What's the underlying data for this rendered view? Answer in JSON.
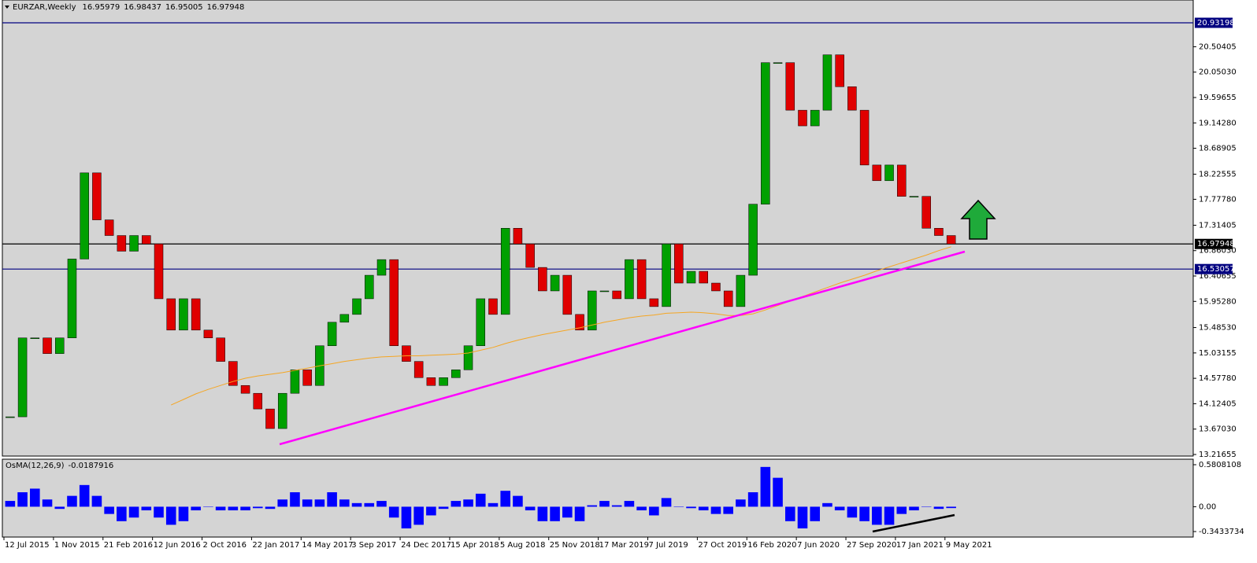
{
  "chart_data": {
    "type": "candlestick",
    "title": "EURZAR,Weekly",
    "quote": [
      16.95979,
      16.98437,
      16.95005,
      16.97948
    ],
    "x": [
      2,
      6,
      10,
      14,
      18,
      22,
      26,
      30,
      34,
      38,
      42,
      46,
      50,
      54,
      58,
      62,
      66,
      70,
      74,
      78,
      82,
      86,
      90,
      94,
      98,
      102,
      106,
      110,
      114,
      118,
      122,
      126,
      130,
      134,
      138,
      142,
      146,
      150,
      154,
      158,
      162,
      166,
      170,
      174,
      178,
      182,
      186,
      190,
      194,
      198,
      202,
      206,
      210,
      214,
      218,
      222,
      226,
      230,
      234,
      238,
      242,
      246,
      250,
      254,
      258,
      262,
      266,
      270,
      274,
      278,
      282,
      286,
      290,
      294,
      298,
      302,
      306
    ],
    "close": [
      13.89,
      15.3,
      15.3,
      15.02,
      15.3,
      16.71,
      18.25,
      17.41,
      17.13,
      16.85,
      17.13,
      16.98,
      16.0,
      15.44,
      16.0,
      15.44,
      15.3,
      14.88,
      14.45,
      14.31,
      14.03,
      13.68,
      14.31,
      14.73,
      14.45,
      15.16,
      15.58,
      15.72,
      16.0,
      16.42,
      16.7,
      15.16,
      14.88,
      14.59,
      14.45,
      14.59,
      14.73,
      15.16,
      16.0,
      15.72,
      17.26,
      16.98,
      16.56,
      16.14,
      16.42,
      15.72,
      15.44,
      16.14,
      16.14,
      16.0,
      16.7,
      16.0,
      15.86,
      16.98,
      16.28,
      16.49,
      16.28,
      16.14,
      15.86,
      16.42,
      17.69,
      20.22,
      20.22,
      19.37,
      19.09,
      19.37,
      20.36,
      19.79,
      19.37,
      18.39,
      18.11,
      18.39,
      17.83,
      17.83,
      17.26,
      17.13,
      16.97948
    ],
    "up_color": "#00a000",
    "down_color": "#e00000",
    "ma": {
      "color": "#f5a623",
      "values": [
        null,
        null,
        null,
        null,
        null,
        null,
        null,
        null,
        null,
        null,
        null,
        null,
        null,
        14.1,
        14.2,
        14.3,
        14.38,
        14.45,
        14.52,
        14.58,
        14.62,
        14.65,
        14.68,
        14.72,
        14.76,
        14.8,
        14.84,
        14.88,
        14.91,
        14.94,
        14.96,
        14.97,
        14.98,
        14.98,
        14.99,
        15.0,
        15.01,
        15.03,
        15.08,
        15.13,
        15.2,
        15.26,
        15.31,
        15.36,
        15.4,
        15.44,
        15.48,
        15.53,
        15.58,
        15.62,
        15.66,
        15.69,
        15.71,
        15.74,
        15.75,
        15.76,
        15.75,
        15.73,
        15.7,
        15.7,
        15.73,
        15.8,
        15.88,
        15.96,
        16.04,
        16.12,
        16.2,
        16.28,
        16.35,
        16.42,
        16.5,
        16.57,
        16.64,
        16.71,
        16.78,
        16.86,
        16.93
      ]
    },
    "levels": [
      {
        "value": 20.93198,
        "color": "#000080"
      },
      {
        "value": 16.97948,
        "color": "#000000"
      },
      {
        "value": 16.53057,
        "color": "#000080"
      }
    ],
    "xlim": [
      -0.51,
      384.2
    ],
    "xticks": [
      {
        "value": 0,
        "label": "12 Jul 2015"
      },
      {
        "value": 16,
        "label": "1 Nov 2015"
      },
      {
        "value": 32,
        "label": "21 Feb 2016"
      },
      {
        "value": 48,
        "label": "12 Jun 2016"
      },
      {
        "value": 64,
        "label": "2 Oct 2016"
      },
      {
        "value": 80,
        "label": "22 Jan 2017"
      },
      {
        "value": 96,
        "label": "14 May 2017"
      },
      {
        "value": 112,
        "label": "3 Sep 2017"
      },
      {
        "value": 128,
        "label": "24 Dec 2017"
      },
      {
        "value": 144,
        "label": "15 Apr 2018"
      },
      {
        "value": 160,
        "label": "5 Aug 2018"
      },
      {
        "value": 176,
        "label": "25 Nov 2018"
      },
      {
        "value": 192,
        "label": "17 Mar 2019"
      },
      {
        "value": 208,
        "label": "7 Jul 2019"
      },
      {
        "value": 224,
        "label": "27 Oct 2019"
      },
      {
        "value": 240,
        "label": "16 Feb 2020"
      },
      {
        "value": 256,
        "label": "7 Jun 2020"
      },
      {
        "value": 272,
        "label": "27 Sep 2020"
      },
      {
        "value": 288,
        "label": "17 Jan 2021"
      },
      {
        "value": 304,
        "label": "9 May 2021"
      }
    ],
    "ylim": [
      13.1884,
      21.3395
    ],
    "yticks": [
      20.50405,
      {
        "value": 20.0503,
        "label": "20.05030"
      },
      19.59655,
      {
        "value": 19.1428,
        "label": "19.14280"
      },
      18.68905,
      18.22555,
      {
        "value": 17.7778,
        "label": "17.77780"
      },
      17.31405,
      {
        "value": 16.8603,
        "label": "16.86030"
      },
      16.40655,
      {
        "value": 15.9528,
        "label": "15.95280"
      },
      {
        "value": 15.4853,
        "label": "15.48530"
      },
      15.03155,
      {
        "value": 14.5778,
        "label": "14.57780"
      },
      14.12405,
      {
        "value": 13.6703,
        "label": "13.67030"
      },
      13.21655
    ],
    "indicator": {
      "type": "bar",
      "title": "OsMA(12,26,9)",
      "color": "#0000ff",
      "values": [
        0.08,
        0.2,
        0.25,
        0.1,
        -0.03,
        0.15,
        0.3,
        0.15,
        -0.1,
        -0.2,
        -0.15,
        -0.05,
        -0.15,
        -0.25,
        -0.2,
        -0.05,
        0.0,
        -0.05,
        -0.05,
        -0.05,
        -0.02,
        -0.03,
        0.1,
        0.2,
        0.1,
        0.1,
        0.2,
        0.1,
        0.05,
        0.05,
        0.08,
        -0.15,
        -0.3,
        -0.25,
        -0.12,
        -0.03,
        0.08,
        0.1,
        0.18,
        0.05,
        0.22,
        0.15,
        -0.05,
        -0.2,
        -0.2,
        -0.15,
        -0.2,
        0.02,
        0.08,
        0.02,
        0.08,
        -0.05,
        -0.12,
        0.12,
        0.0,
        -0.02,
        -0.05,
        -0.1,
        -0.1,
        0.1,
        0.2,
        0.55,
        0.4,
        -0.2,
        -0.3,
        -0.2,
        0.05,
        -0.05,
        -0.15,
        -0.2,
        -0.25,
        -0.25,
        -0.1,
        -0.05,
        0.0,
        -0.03,
        -0.0187916
      ],
      "ylim": [
        -0.4195,
        0.657
      ],
      "yticks": [
        0.5808108,
        {
          "value": 0,
          "label": "0.00"
        },
        -0.3433734
      ]
    }
  }
}
